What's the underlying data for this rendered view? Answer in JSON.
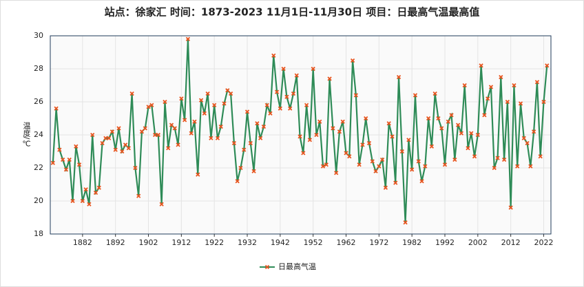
{
  "chart_data": {
    "type": "line",
    "title": "站点：徐家汇 时间：1873-2023  11月1日-11月30日 项目：日最高气温最高值",
    "y_label": "温度/℃",
    "x": [
      1873,
      1874,
      1875,
      1876,
      1877,
      1878,
      1879,
      1880,
      1881,
      1882,
      1883,
      1884,
      1885,
      1886,
      1887,
      1888,
      1889,
      1890,
      1891,
      1892,
      1893,
      1894,
      1895,
      1896,
      1897,
      1898,
      1899,
      1900,
      1901,
      1902,
      1903,
      1904,
      1905,
      1906,
      1907,
      1908,
      1909,
      1910,
      1911,
      1912,
      1913,
      1914,
      1915,
      1916,
      1917,
      1918,
      1919,
      1920,
      1921,
      1922,
      1923,
      1924,
      1925,
      1926,
      1927,
      1928,
      1929,
      1930,
      1931,
      1932,
      1933,
      1934,
      1935,
      1936,
      1937,
      1938,
      1939,
      1940,
      1941,
      1942,
      1943,
      1944,
      1945,
      1946,
      1947,
      1948,
      1949,
      1950,
      1951,
      1952,
      1953,
      1954,
      1955,
      1956,
      1957,
      1958,
      1959,
      1960,
      1961,
      1962,
      1963,
      1964,
      1965,
      1966,
      1967,
      1968,
      1969,
      1970,
      1971,
      1972,
      1973,
      1974,
      1975,
      1976,
      1977,
      1978,
      1979,
      1980,
      1981,
      1982,
      1983,
      1984,
      1985,
      1986,
      1987,
      1988,
      1989,
      1990,
      1991,
      1992,
      1993,
      1994,
      1995,
      1996,
      1997,
      1998,
      1999,
      2000,
      2001,
      2002,
      2003,
      2004,
      2005,
      2006,
      2007,
      2008,
      2009,
      2010,
      2011,
      2012,
      2013,
      2014,
      2015,
      2016,
      2017,
      2018,
      2019,
      2020,
      2021,
      2022,
      2023
    ],
    "series": [
      {
        "name": "日最高气温",
        "color": "#2e8b57",
        "marker_color": "#e8541e",
        "values": [
          22.3,
          25.6,
          23.1,
          22.5,
          21.9,
          22.5,
          20.0,
          23.3,
          22.2,
          20.0,
          20.7,
          19.8,
          24.0,
          20.5,
          20.8,
          23.5,
          23.8,
          23.8,
          24.2,
          23.1,
          24.4,
          23.0,
          23.4,
          23.2,
          26.5,
          22.0,
          20.3,
          24.2,
          24.4,
          25.7,
          25.8,
          24.0,
          24.0,
          19.8,
          26.0,
          23.2,
          24.6,
          24.4,
          23.4,
          26.2,
          24.9,
          29.8,
          24.1,
          24.8,
          21.6,
          26.1,
          25.3,
          26.5,
          23.8,
          25.8,
          23.8,
          24.5,
          25.9,
          26.7,
          26.5,
          23.5,
          21.2,
          22.0,
          23.1,
          25.4,
          23.5,
          21.8,
          24.7,
          23.8,
          24.5,
          25.8,
          25.3,
          28.8,
          26.6,
          25.6,
          28.0,
          26.3,
          25.6,
          26.5,
          27.6,
          23.9,
          22.9,
          25.8,
          23.7,
          28.0,
          24.0,
          24.8,
          22.1,
          22.2,
          27.4,
          24.4,
          21.7,
          24.2,
          24.8,
          22.9,
          22.7,
          28.5,
          26.4,
          22.2,
          23.4,
          25.0,
          23.5,
          22.4,
          21.8,
          22.1,
          22.5,
          20.8,
          24.7,
          23.9,
          21.1,
          27.5,
          23.0,
          18.7,
          23.7,
          21.9,
          26.4,
          22.4,
          21.2,
          22.1,
          25.0,
          23.3,
          26.5,
          25.0,
          24.4,
          22.2,
          24.8,
          25.2,
          22.5,
          24.6,
          24.1,
          27.0,
          23.2,
          24.1,
          22.7,
          24.0,
          28.2,
          25.2,
          26.2,
          26.9,
          22.0,
          22.6,
          27.5,
          22.5,
          26.0,
          19.6,
          27.0,
          22.1,
          25.9,
          23.8,
          23.5,
          22.1,
          24.2,
          27.2,
          22.7,
          26.0,
          28.2
        ]
      }
    ],
    "xlim": [
      1872.2,
      2024.2
    ],
    "xticks": [
      1882,
      1892,
      1902,
      1912,
      1922,
      1932,
      1942,
      1952,
      1962,
      1972,
      1982,
      1992,
      2002,
      2012,
      2022
    ],
    "ylim": [
      18,
      30
    ],
    "yticks": [
      18,
      20,
      22,
      24,
      26,
      28,
      30
    ],
    "grid": true,
    "legend": "bottom"
  }
}
